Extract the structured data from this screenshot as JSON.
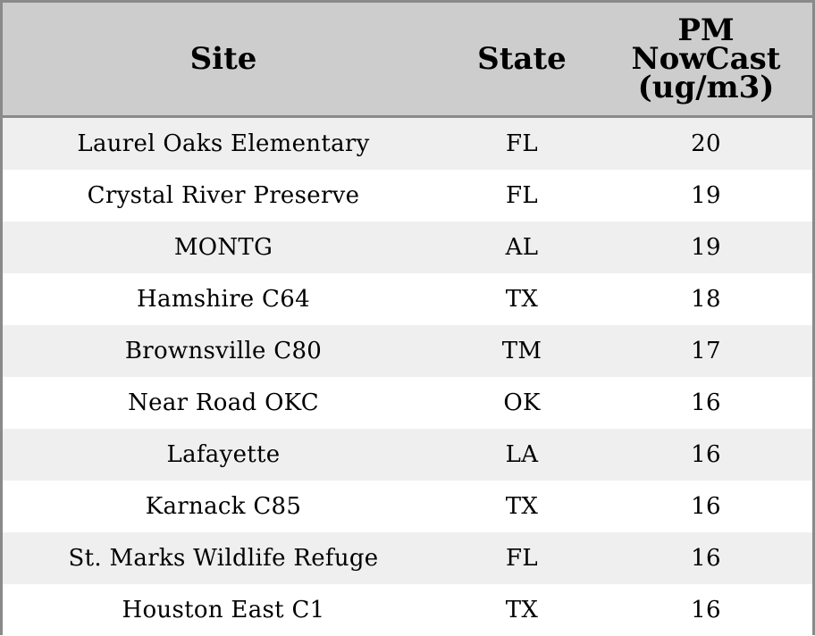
{
  "table": {
    "columns": [
      "Site",
      "State",
      "PM\nNowCast\n(ug/m3)"
    ],
    "rows": [
      {
        "site": "Laurel Oaks Elementary",
        "state": "FL",
        "pm": "20"
      },
      {
        "site": "Crystal River Preserve",
        "state": "FL",
        "pm": "19"
      },
      {
        "site": "MONTG",
        "state": "AL",
        "pm": "19"
      },
      {
        "site": "Hamshire C64",
        "state": "TX",
        "pm": "18"
      },
      {
        "site": "Brownsville C80",
        "state": "TM",
        "pm": "17"
      },
      {
        "site": "Near Road OKC",
        "state": "OK",
        "pm": "16"
      },
      {
        "site": "Lafayette",
        "state": "LA",
        "pm": "16"
      },
      {
        "site": "Karnack C85",
        "state": "TX",
        "pm": "16"
      },
      {
        "site": "St. Marks Wildlife Refuge",
        "state": "FL",
        "pm": "16"
      },
      {
        "site": "Houston East C1",
        "state": "TX",
        "pm": "16"
      }
    ]
  },
  "colors": {
    "header_bg": "#cdcdcd",
    "row_alt_bg": "#efefef",
    "row_bg": "#ffffff",
    "border": "#8a8a8a"
  }
}
